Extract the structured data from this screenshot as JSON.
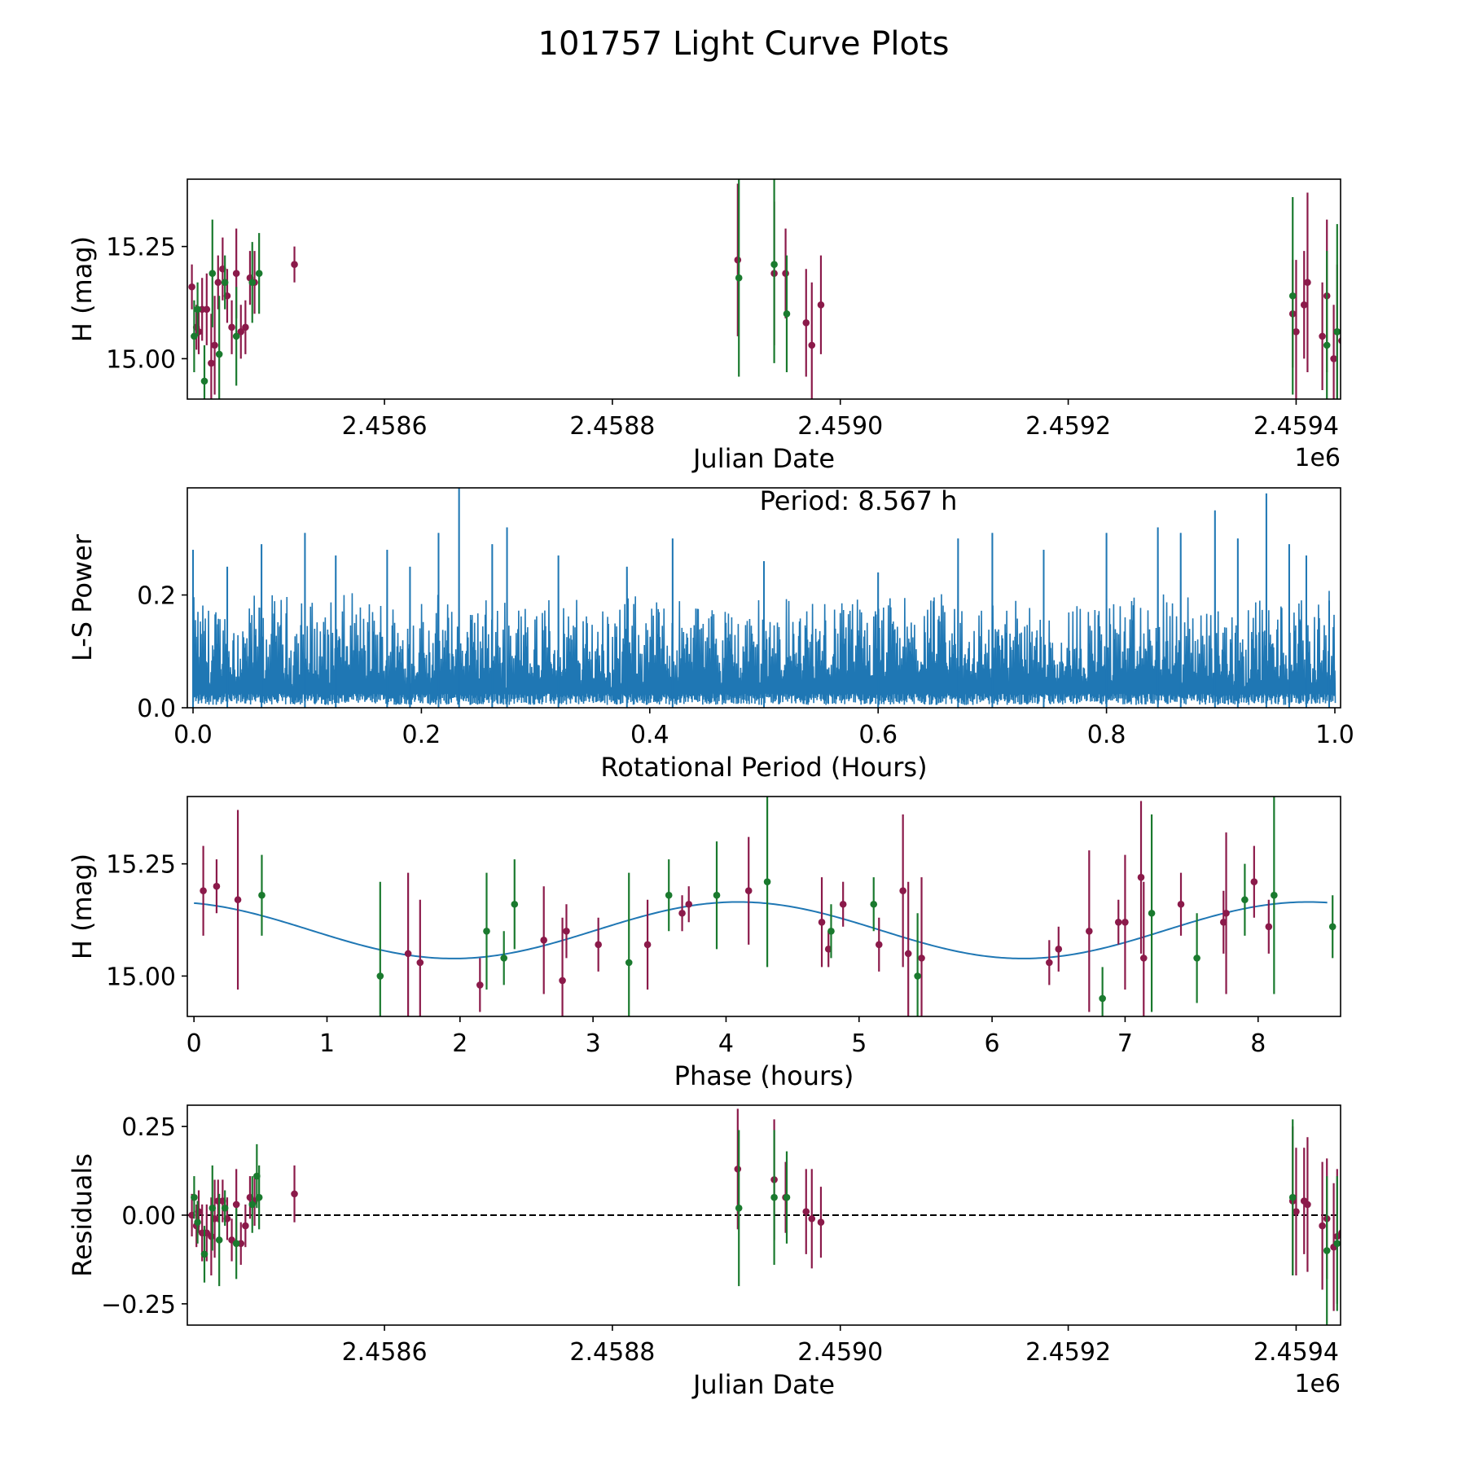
{
  "figure": {
    "title": "101757 Light Curve Plots"
  },
  "colors": {
    "red_band": "#8b1a4a",
    "green_band": "#1a7a2e",
    "model": "#1f77b4",
    "axes": "#000000"
  },
  "chart_data": [
    {
      "id": "lightcurve",
      "type": "scatter",
      "xlabel": "Julian Date",
      "ylabel": "H (mag)",
      "xlim": [
        2458427,
        2459439
      ],
      "ylim": [
        14.91,
        15.4
      ],
      "xticks": [
        2458600,
        2458800,
        2459000,
        2459200,
        2459400
      ],
      "xtick_labels": [
        "2.4586",
        "2.4588",
        "2.4590",
        "2.4592",
        "2.4594"
      ],
      "offset_label": "1e6",
      "yticks": [
        15.0,
        15.25
      ],
      "ytick_labels": [
        "15.00",
        "15.25"
      ],
      "series": [
        {
          "name": "r",
          "color": "#8b1a4a",
          "points": [
            [
              2458431,
              15.16,
              0.05
            ],
            [
              2458435,
              15.07,
              0.05
            ],
            [
              2458437,
              15.06,
              0.05
            ],
            [
              2458440,
              15.11,
              0.07
            ],
            [
              2458444,
              15.11,
              0.08
            ],
            [
              2458448,
              14.99,
              0.11
            ],
            [
              2458451,
              15.03,
              0.11
            ],
            [
              2458454,
              15.17,
              0.06
            ],
            [
              2458458,
              15.2,
              0.07
            ],
            [
              2458462,
              15.14,
              0.06
            ],
            [
              2458466,
              15.07,
              0.06
            ],
            [
              2458470,
              15.19,
              0.1
            ],
            [
              2458474,
              15.06,
              0.06
            ],
            [
              2458478,
              15.07,
              0.06
            ],
            [
              2458482,
              15.18,
              0.06
            ],
            [
              2458486,
              15.17,
              0.07
            ],
            [
              2458521,
              15.21,
              0.04
            ],
            [
              2458910,
              15.22,
              0.17
            ],
            [
              2458942,
              15.19,
              0.16
            ],
            [
              2458952,
              15.19,
              0.1
            ],
            [
              2458970,
              15.08,
              0.12
            ],
            [
              2458975,
              15.03,
              0.14
            ],
            [
              2458983,
              15.12,
              0.11
            ],
            [
              2459397,
              15.1,
              0.12
            ],
            [
              2459400,
              15.06,
              0.16
            ],
            [
              2459407,
              15.12,
              0.12
            ],
            [
              2459410,
              15.17,
              0.2
            ],
            [
              2459423,
              15.05,
              0.12
            ],
            [
              2459427,
              15.14,
              0.17
            ],
            [
              2459433,
              15.0,
              0.12
            ],
            [
              2459436,
              15.06,
              0.15
            ],
            [
              2459440,
              15.04,
              0.15
            ]
          ]
        },
        {
          "name": "g",
          "color": "#1a7a2e",
          "points": [
            [
              2458433,
              15.05,
              0.08
            ],
            [
              2458436,
              15.11,
              0.06
            ],
            [
              2458442,
              14.95,
              0.08
            ],
            [
              2458449,
              15.19,
              0.12
            ],
            [
              2458455,
              15.01,
              0.13
            ],
            [
              2458460,
              15.17,
              0.06
            ],
            [
              2458470,
              15.05,
              0.11
            ],
            [
              2458484,
              15.17,
              0.09
            ],
            [
              2458490,
              15.19,
              0.09
            ],
            [
              2458911,
              15.18,
              0.22
            ],
            [
              2458942,
              15.21,
              0.22
            ],
            [
              2458953,
              15.1,
              0.13
            ],
            [
              2459397,
              15.14,
              0.22
            ],
            [
              2459427,
              15.03,
              0.21
            ],
            [
              2459436,
              15.06,
              0.24
            ]
          ]
        }
      ]
    },
    {
      "id": "periodogram",
      "type": "line",
      "xlabel": "Rotational Period (Hours)",
      "ylabel": "L-S Power",
      "xlim": [
        -0.005,
        1.005
      ],
      "ylim": [
        0,
        0.39
      ],
      "xticks": [
        0.0,
        0.2,
        0.4,
        0.6,
        0.8,
        1.0
      ],
      "xtick_labels": [
        "0.0",
        "0.2",
        "0.4",
        "0.6",
        "0.8",
        "1.0"
      ],
      "yticks": [
        0.0,
        0.2
      ],
      "ytick_labels": [
        "0.0",
        "0.2"
      ],
      "annotation": "Period: 8.567 h",
      "color": "#1f77b4",
      "peaks": [
        [
          0.0,
          0.28
        ],
        [
          0.03,
          0.25
        ],
        [
          0.06,
          0.29
        ],
        [
          0.098,
          0.31
        ],
        [
          0.125,
          0.27
        ],
        [
          0.17,
          0.28
        ],
        [
          0.19,
          0.25
        ],
        [
          0.215,
          0.31
        ],
        [
          0.233,
          0.39
        ],
        [
          0.262,
          0.29
        ],
        [
          0.275,
          0.32
        ],
        [
          0.32,
          0.27
        ],
        [
          0.38,
          0.25
        ],
        [
          0.42,
          0.3
        ],
        [
          0.5,
          0.26
        ],
        [
          0.6,
          0.24
        ],
        [
          0.67,
          0.3
        ],
        [
          0.7,
          0.31
        ],
        [
          0.745,
          0.28
        ],
        [
          0.8,
          0.31
        ],
        [
          0.845,
          0.32
        ],
        [
          0.865,
          0.31
        ],
        [
          0.895,
          0.35
        ],
        [
          0.915,
          0.3
        ],
        [
          0.94,
          0.38
        ],
        [
          0.96,
          0.29
        ],
        [
          0.975,
          0.27
        ],
        [
          0.995,
          0.19
        ]
      ]
    },
    {
      "id": "phased",
      "type": "scatter",
      "xlabel": "Phase (hours)",
      "ylabel": "H (mag)",
      "xlim": [
        -0.05,
        8.62
      ],
      "ylim": [
        14.91,
        15.4
      ],
      "xticks": [
        0,
        1,
        2,
        3,
        4,
        5,
        6,
        7,
        8
      ],
      "xtick_labels": [
        "0",
        "1",
        "2",
        "3",
        "4",
        "5",
        "6",
        "7",
        "8"
      ],
      "yticks": [
        15.0,
        15.25
      ],
      "ytick_labels": [
        "15.00",
        "15.25"
      ],
      "model": {
        "mean": 15.102,
        "amplitude": 0.063,
        "period": 4.283,
        "phase_offset": 1.95
      },
      "series": [
        {
          "name": "r",
          "color": "#8b1a4a",
          "points": [
            [
              0.07,
              15.19,
              0.1
            ],
            [
              0.17,
              15.2,
              0.06
            ],
            [
              0.33,
              15.17,
              0.2
            ],
            [
              1.61,
              15.05,
              0.18
            ],
            [
              1.7,
              15.03,
              0.14
            ],
            [
              2.15,
              14.98,
              0.06
            ],
            [
              2.63,
              15.08,
              0.12
            ],
            [
              2.77,
              14.99,
              0.14
            ],
            [
              2.8,
              15.1,
              0.06
            ],
            [
              3.04,
              15.07,
              0.06
            ],
            [
              3.41,
              15.07,
              0.1
            ],
            [
              3.67,
              15.14,
              0.04
            ],
            [
              3.72,
              15.16,
              0.04
            ],
            [
              4.17,
              15.19,
              0.12
            ],
            [
              4.72,
              15.12,
              0.1
            ],
            [
              4.77,
              15.06,
              0.04
            ],
            [
              4.88,
              15.16,
              0.05
            ],
            [
              5.15,
              15.07,
              0.06
            ],
            [
              5.33,
              15.19,
              0.17
            ],
            [
              5.37,
              15.05,
              0.16
            ],
            [
              5.47,
              15.04,
              0.18
            ],
            [
              6.43,
              15.03,
              0.05
            ],
            [
              6.5,
              15.06,
              0.05
            ],
            [
              6.73,
              15.1,
              0.18
            ],
            [
              6.95,
              15.12,
              0.05
            ],
            [
              7.0,
              15.12,
              0.15
            ],
            [
              7.12,
              15.22,
              0.17
            ],
            [
              7.14,
              15.04,
              0.17
            ],
            [
              7.42,
              15.16,
              0.07
            ],
            [
              7.74,
              15.12,
              0.07
            ],
            [
              7.76,
              15.14,
              0.18
            ],
            [
              7.97,
              15.21,
              0.08
            ],
            [
              8.08,
              15.11,
              0.06
            ]
          ]
        },
        {
          "name": "g",
          "color": "#1a7a2e",
          "points": [
            [
              0.51,
              15.18,
              0.09
            ],
            [
              1.4,
              15.0,
              0.21
            ],
            [
              2.2,
              15.1,
              0.13
            ],
            [
              2.33,
              15.04,
              0.06
            ],
            [
              2.41,
              15.16,
              0.1
            ],
            [
              3.27,
              15.03,
              0.2
            ],
            [
              3.57,
              15.18,
              0.08
            ],
            [
              3.93,
              15.18,
              0.12
            ],
            [
              4.31,
              15.21,
              0.19
            ],
            [
              4.79,
              15.1,
              0.06
            ],
            [
              5.11,
              15.16,
              0.06
            ],
            [
              5.44,
              15.0,
              0.14
            ],
            [
              6.83,
              14.95,
              0.07
            ],
            [
              7.2,
              15.14,
              0.22
            ],
            [
              7.54,
              15.04,
              0.1
            ],
            [
              7.9,
              15.17,
              0.08
            ],
            [
              8.12,
              15.18,
              0.22
            ],
            [
              8.56,
              15.11,
              0.07
            ]
          ]
        }
      ]
    },
    {
      "id": "residuals",
      "type": "scatter",
      "xlabel": "Julian Date",
      "ylabel": "Residuals",
      "xlim": [
        2458427,
        2459439
      ],
      "ylim": [
        -0.31,
        0.31
      ],
      "xticks": [
        2458600,
        2458800,
        2459000,
        2459200,
        2459400
      ],
      "xtick_labels": [
        "2.4586",
        "2.4588",
        "2.4590",
        "2.4592",
        "2.4594"
      ],
      "offset_label": "1e6",
      "yticks": [
        -0.25,
        0.0,
        0.25
      ],
      "ytick_labels": [
        "−0.25",
        "0.00",
        "0.25"
      ],
      "zero_line": 0.0,
      "series": [
        {
          "name": "r",
          "color": "#8b1a4a",
          "points": [
            [
              2458431,
              0.0,
              0.06
            ],
            [
              2458435,
              -0.03,
              0.06
            ],
            [
              2458437,
              0.01,
              0.06
            ],
            [
              2458440,
              -0.05,
              0.08
            ],
            [
              2458444,
              -0.05,
              0.08
            ],
            [
              2458448,
              -0.06,
              0.11
            ],
            [
              2458451,
              -0.01,
              0.11
            ],
            [
              2458454,
              0.04,
              0.06
            ],
            [
              2458458,
              0.04,
              0.06
            ],
            [
              2458462,
              -0.01,
              0.06
            ],
            [
              2458466,
              -0.07,
              0.06
            ],
            [
              2458470,
              0.03,
              0.1
            ],
            [
              2458474,
              -0.08,
              0.06
            ],
            [
              2458478,
              -0.03,
              0.06
            ],
            [
              2458482,
              0.05,
              0.06
            ],
            [
              2458486,
              0.04,
              0.07
            ],
            [
              2458521,
              0.06,
              0.08
            ],
            [
              2458910,
              0.13,
              0.17
            ],
            [
              2458942,
              0.1,
              0.17
            ],
            [
              2458952,
              0.05,
              0.1
            ],
            [
              2458970,
              0.01,
              0.12
            ],
            [
              2458975,
              -0.01,
              0.14
            ],
            [
              2458983,
              -0.02,
              0.1
            ],
            [
              2459397,
              0.04,
              0.21
            ],
            [
              2459400,
              0.01,
              0.18
            ],
            [
              2459407,
              0.04,
              0.15
            ],
            [
              2459410,
              0.03,
              0.19
            ],
            [
              2459423,
              -0.03,
              0.18
            ],
            [
              2459427,
              -0.01,
              0.17
            ],
            [
              2459433,
              -0.09,
              0.18
            ],
            [
              2459436,
              -0.06,
              0.19
            ],
            [
              2459440,
              -0.05,
              0.17
            ]
          ]
        },
        {
          "name": "g",
          "color": "#1a7a2e",
          "points": [
            [
              2458433,
              0.05,
              0.06
            ],
            [
              2458436,
              -0.02,
              0.06
            ],
            [
              2458442,
              -0.11,
              0.08
            ],
            [
              2458449,
              0.02,
              0.12
            ],
            [
              2458455,
              -0.07,
              0.13
            ],
            [
              2458460,
              0.02,
              0.05
            ],
            [
              2458470,
              -0.08,
              0.1
            ],
            [
              2458484,
              0.03,
              0.08
            ],
            [
              2458488,
              0.11,
              0.09
            ],
            [
              2458490,
              0.05,
              0.09
            ],
            [
              2458911,
              0.02,
              0.22
            ],
            [
              2458942,
              0.05,
              0.19
            ],
            [
              2458953,
              0.05,
              0.13
            ],
            [
              2459397,
              0.05,
              0.22
            ],
            [
              2459427,
              -0.1,
              0.21
            ],
            [
              2459436,
              -0.08,
              0.19
            ]
          ]
        }
      ]
    }
  ]
}
